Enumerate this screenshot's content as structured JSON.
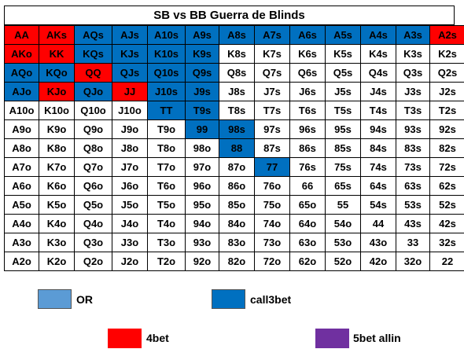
{
  "title": "SB vs BB Guerra de Blinds",
  "colors": {
    "OR": "#5b9bd5",
    "call3bet": "#0070c0",
    "4bet": "#ff0000",
    "5bet": "#7030a0",
    "fold": "#ffffff"
  },
  "grid": [
    [
      [
        "AA",
        "4bet"
      ],
      [
        "AKs",
        "4bet"
      ],
      [
        "AQs",
        "call3bet"
      ],
      [
        "AJs",
        "call3bet"
      ],
      [
        "A10s",
        "call3bet"
      ],
      [
        "A9s",
        "call3bet"
      ],
      [
        "A8s",
        "call3bet"
      ],
      [
        "A7s",
        "call3bet"
      ],
      [
        "A6s",
        "call3bet"
      ],
      [
        "A5s",
        "call3bet"
      ],
      [
        "A4s",
        "call3bet"
      ],
      [
        "A3s",
        "call3bet"
      ],
      [
        "A2s",
        "4bet"
      ]
    ],
    [
      [
        "AKo",
        "4bet"
      ],
      [
        "KK",
        "4bet"
      ],
      [
        "KQs",
        "call3bet"
      ],
      [
        "KJs",
        "call3bet"
      ],
      [
        "K10s",
        "call3bet"
      ],
      [
        "K9s",
        "call3bet"
      ],
      [
        "K8s",
        "OR"
      ],
      [
        "K7s",
        "OR"
      ],
      [
        "K6s",
        "OR"
      ],
      [
        "K5s",
        "OR"
      ],
      [
        "K4s",
        "OR"
      ],
      [
        "K3s",
        "OR"
      ],
      [
        "K2s",
        "OR"
      ]
    ],
    [
      [
        "AQo",
        "call3bet"
      ],
      [
        "KQo",
        "call3bet"
      ],
      [
        "QQ",
        "4bet"
      ],
      [
        "QJs",
        "call3bet"
      ],
      [
        "Q10s",
        "call3bet"
      ],
      [
        "Q9s",
        "call3bet"
      ],
      [
        "Q8s",
        "OR"
      ],
      [
        "Q7s",
        "OR"
      ],
      [
        "Q6s",
        "OR"
      ],
      [
        "Q5s",
        "OR"
      ],
      [
        "Q4s",
        "OR"
      ],
      [
        "Q3s",
        "OR"
      ],
      [
        "Q2s",
        "OR"
      ]
    ],
    [
      [
        "AJo",
        "call3bet"
      ],
      [
        "KJo",
        "4bet"
      ],
      [
        "QJo",
        "call3bet"
      ],
      [
        "JJ",
        "4bet"
      ],
      [
        "J10s",
        "call3bet"
      ],
      [
        "J9s",
        "call3bet"
      ],
      [
        "J8s",
        "OR"
      ],
      [
        "J7s",
        "OR"
      ],
      [
        "J6s",
        "OR"
      ],
      [
        "J5s",
        "OR"
      ],
      [
        "J4s",
        "OR"
      ],
      [
        "J3s",
        "OR"
      ],
      [
        "J2s",
        "OR"
      ]
    ],
    [
      [
        "A10o",
        "OR"
      ],
      [
        "K10o",
        "OR"
      ],
      [
        "Q10o",
        "OR"
      ],
      [
        "J10o",
        "OR"
      ],
      [
        "TT",
        "call3bet"
      ],
      [
        "T9s",
        "call3bet"
      ],
      [
        "T8s",
        "OR"
      ],
      [
        "T7s",
        "OR"
      ],
      [
        "T6s",
        "OR"
      ],
      [
        "T5s",
        "OR"
      ],
      [
        "T4s",
        "OR"
      ],
      [
        "T3s",
        "fold"
      ],
      [
        "T2s",
        "fold"
      ]
    ],
    [
      [
        "A9o",
        "OR"
      ],
      [
        "K9o",
        "OR"
      ],
      [
        "Q9o",
        "OR"
      ],
      [
        "J9o",
        "OR"
      ],
      [
        "T9o",
        "OR"
      ],
      [
        "99",
        "call3bet"
      ],
      [
        "98s",
        "call3bet"
      ],
      [
        "97s",
        "OR"
      ],
      [
        "96s",
        "OR"
      ],
      [
        "95s",
        "OR"
      ],
      [
        "94s",
        "OR"
      ],
      [
        "93s",
        "fold"
      ],
      [
        "92s",
        "fold"
      ]
    ],
    [
      [
        "A8o",
        "OR"
      ],
      [
        "K8o",
        "OR"
      ],
      [
        "Q8o",
        "OR"
      ],
      [
        "J8o",
        "OR"
      ],
      [
        "T8o",
        "OR"
      ],
      [
        "98o",
        "OR"
      ],
      [
        "88",
        "call3bet"
      ],
      [
        "87s",
        "OR"
      ],
      [
        "86s",
        "OR"
      ],
      [
        "85s",
        "OR"
      ],
      [
        "84s",
        "OR"
      ],
      [
        "83s",
        "fold"
      ],
      [
        "82s",
        "fold"
      ]
    ],
    [
      [
        "A7o",
        "OR"
      ],
      [
        "K7o",
        "OR"
      ],
      [
        "Q7o",
        "fold"
      ],
      [
        "J7o",
        "fold"
      ],
      [
        "T7o",
        "fold"
      ],
      [
        "97o",
        "fold"
      ],
      [
        "87o",
        "OR"
      ],
      [
        "77",
        "call3bet"
      ],
      [
        "76s",
        "OR"
      ],
      [
        "75s",
        "OR"
      ],
      [
        "74s",
        "OR"
      ],
      [
        "73s",
        "fold"
      ],
      [
        "72s",
        "fold"
      ]
    ],
    [
      [
        "A6o",
        "OR"
      ],
      [
        "K6o",
        "fold"
      ],
      [
        "Q6o",
        "fold"
      ],
      [
        "J6o",
        "fold"
      ],
      [
        "T6o",
        "fold"
      ],
      [
        "96o",
        "fold"
      ],
      [
        "86o",
        "fold"
      ],
      [
        "76o",
        "OR"
      ],
      [
        "66",
        "OR"
      ],
      [
        "65s",
        "OR"
      ],
      [
        "64s",
        "OR"
      ],
      [
        "63s",
        "fold"
      ],
      [
        "62s",
        "fold"
      ]
    ],
    [
      [
        "A5o",
        "OR"
      ],
      [
        "K5o",
        "fold"
      ],
      [
        "Q5o",
        "fold"
      ],
      [
        "J5o",
        "fold"
      ],
      [
        "T5o",
        "fold"
      ],
      [
        "95o",
        "fold"
      ],
      [
        "85o",
        "fold"
      ],
      [
        "75o",
        "fold"
      ],
      [
        "65o",
        "fold"
      ],
      [
        "55",
        "OR"
      ],
      [
        "54s",
        "OR"
      ],
      [
        "53s",
        "OR"
      ],
      [
        "52s",
        "OR"
      ]
    ],
    [
      [
        "A4o",
        "OR"
      ],
      [
        "K4o",
        "fold"
      ],
      [
        "Q4o",
        "fold"
      ],
      [
        "J4o",
        "fold"
      ],
      [
        "T4o",
        "fold"
      ],
      [
        "94o",
        "fold"
      ],
      [
        "84o",
        "fold"
      ],
      [
        "74o",
        "fold"
      ],
      [
        "64o",
        "fold"
      ],
      [
        "54o",
        "fold"
      ],
      [
        "44",
        "OR"
      ],
      [
        "43s",
        "OR"
      ],
      [
        "42s",
        "OR"
      ]
    ],
    [
      [
        "A3o",
        "OR"
      ],
      [
        "K3o",
        "fold"
      ],
      [
        "Q3o",
        "fold"
      ],
      [
        "J3o",
        "fold"
      ],
      [
        "T3o",
        "fold"
      ],
      [
        "93o",
        "fold"
      ],
      [
        "83o",
        "fold"
      ],
      [
        "73o",
        "fold"
      ],
      [
        "63o",
        "fold"
      ],
      [
        "53o",
        "fold"
      ],
      [
        "43o",
        "fold"
      ],
      [
        "33",
        "OR"
      ],
      [
        "32s",
        "OR"
      ]
    ],
    [
      [
        "A2o",
        "OR"
      ],
      [
        "K2o",
        "fold"
      ],
      [
        "Q2o",
        "fold"
      ],
      [
        "J2o",
        "fold"
      ],
      [
        "T2o",
        "fold"
      ],
      [
        "92o",
        "fold"
      ],
      [
        "82o",
        "fold"
      ],
      [
        "72o",
        "fold"
      ],
      [
        "62o",
        "fold"
      ],
      [
        "52o",
        "fold"
      ],
      [
        "42o",
        "fold"
      ],
      [
        "32o",
        "fold"
      ],
      [
        "22",
        "OR"
      ]
    ]
  ],
  "legend": [
    {
      "label": "OR",
      "color": "#5b9bd5"
    },
    {
      "label": "call3bet",
      "color": "#0070c0"
    },
    {
      "label": "4bet",
      "color": "#ff0000"
    },
    {
      "label": "5bet allin",
      "color": "#7030a0"
    }
  ]
}
